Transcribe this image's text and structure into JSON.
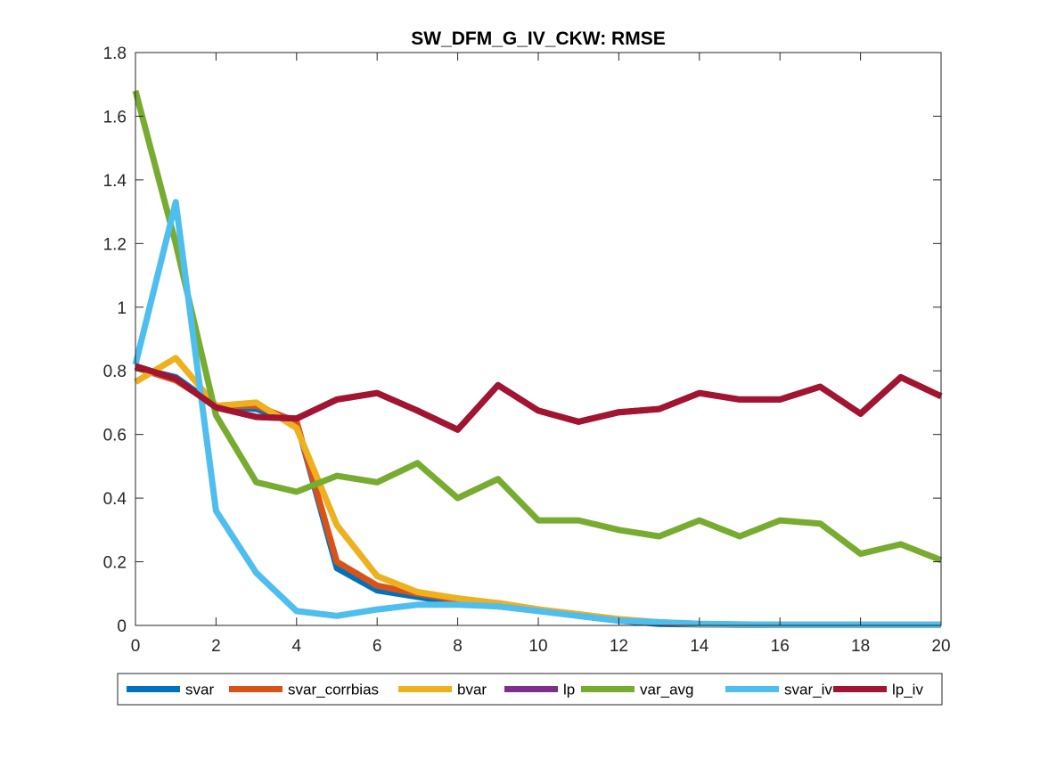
{
  "chart_data": {
    "type": "line",
    "title": "SW_DFM_G_IV_CKW: RMSE",
    "xlabel": "",
    "ylabel": "",
    "xlim": [
      0,
      20
    ],
    "ylim": [
      0,
      1.8
    ],
    "xticks": [
      0,
      2,
      4,
      6,
      8,
      10,
      12,
      14,
      16,
      18,
      20
    ],
    "yticks": [
      0,
      0.2,
      0.4,
      0.6,
      0.8,
      1,
      1.2,
      1.4,
      1.6,
      1.8
    ],
    "xtick_labels": [
      "0",
      "2",
      "4",
      "6",
      "8",
      "10",
      "12",
      "14",
      "16",
      "18",
      "20"
    ],
    "ytick_labels": [
      "0",
      "0.2",
      "0.4",
      "0.6",
      "0.8",
      "1",
      "1.2",
      "1.4",
      "1.6",
      "1.8"
    ],
    "grid": false,
    "legend_position": "bottom-outside",
    "x": [
      0,
      1,
      2,
      3,
      4,
      5,
      6,
      7,
      8,
      9,
      10,
      11,
      12,
      13,
      14,
      15,
      16,
      17,
      18,
      19,
      20
    ],
    "series": [
      {
        "name": "svar",
        "color": "#0072BD",
        "values": [
          0.81,
          0.78,
          0.69,
          0.68,
          0.64,
          0.18,
          0.11,
          0.09,
          0.07,
          0.06,
          0.05,
          0.03,
          0.015,
          0.005,
          0.003,
          0.002,
          0.002,
          0.002,
          0.002,
          0.002,
          0.002
        ]
      },
      {
        "name": "svar_corrbias",
        "color": "#D95319",
        "values": [
          0.81,
          0.77,
          0.69,
          0.69,
          0.64,
          0.2,
          0.125,
          0.1,
          0.08,
          0.07,
          0.05,
          0.035,
          0.018,
          0.008,
          0.004,
          0.002,
          0.002,
          0.002,
          0.002,
          0.002,
          0.002
        ]
      },
      {
        "name": "bvar",
        "color": "#EDB120",
        "values": [
          0.765,
          0.84,
          0.69,
          0.7,
          0.62,
          0.315,
          0.155,
          0.105,
          0.085,
          0.07,
          0.05,
          0.035,
          0.02,
          0.01,
          0.005,
          0.003,
          0.002,
          0.002,
          0.002,
          0.002,
          0.002
        ]
      },
      {
        "name": "lp",
        "color": "#7E2F8E",
        "values": [
          0.815,
          0.775,
          0.685,
          0.655,
          0.65,
          0.71,
          0.73,
          0.675,
          0.615,
          0.755,
          0.675,
          0.64,
          0.67,
          0.68,
          0.73,
          0.71,
          0.71,
          0.75,
          0.665,
          0.78,
          0.72
        ]
      },
      {
        "name": "var_avg",
        "color": "#77AC30",
        "values": [
          1.68,
          1.2,
          0.66,
          0.45,
          0.42,
          0.47,
          0.45,
          0.51,
          0.4,
          0.46,
          0.33,
          0.33,
          0.3,
          0.28,
          0.33,
          0.28,
          0.33,
          0.32,
          0.225,
          0.255,
          0.205
        ]
      },
      {
        "name": "svar_iv",
        "color": "#4DBEEE",
        "values": [
          0.82,
          1.33,
          0.36,
          0.165,
          0.045,
          0.03,
          0.05,
          0.065,
          0.065,
          0.06,
          0.045,
          0.03,
          0.015,
          0.01,
          0.005,
          0.003,
          0.002,
          0.002,
          0.002,
          0.002,
          0.002
        ]
      },
      {
        "name": "lp_iv",
        "color": "#A2142F",
        "values": [
          0.815,
          0.775,
          0.685,
          0.655,
          0.65,
          0.71,
          0.73,
          0.675,
          0.615,
          0.755,
          0.675,
          0.64,
          0.67,
          0.68,
          0.73,
          0.71,
          0.71,
          0.75,
          0.665,
          0.78,
          0.72
        ]
      }
    ]
  }
}
